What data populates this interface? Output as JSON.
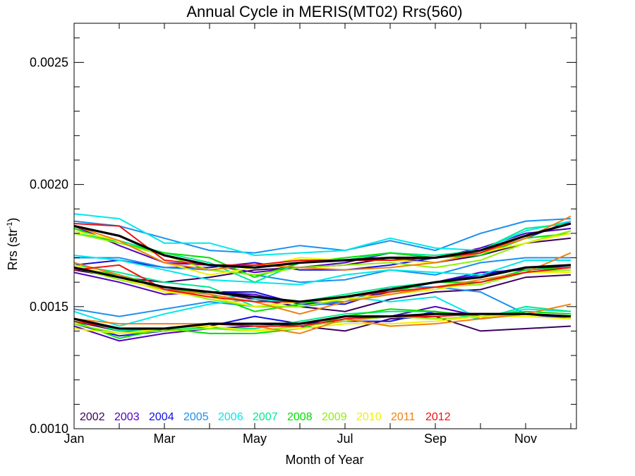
{
  "chart_data": {
    "type": "line",
    "title": "Annual Cycle in MERIS(MT02) Rrs(560)",
    "xlabel": "Month of Year",
    "ylabel_main": "Rrs (str",
    "ylabel_sup": "-1",
    "ylabel_close": ")",
    "xlim": [
      1,
      12
    ],
    "ylim": [
      0.001,
      0.00266
    ],
    "x_ticks": [
      {
        "value": 1,
        "label": "Jan"
      },
      {
        "value": 3,
        "label": "Mar"
      },
      {
        "value": 5,
        "label": "May"
      },
      {
        "value": 7,
        "label": "Jul"
      },
      {
        "value": 9,
        "label": "Sep"
      },
      {
        "value": 11,
        "label": "Nov"
      }
    ],
    "y_ticks": [
      {
        "value": 0.001,
        "label": "0.0010"
      },
      {
        "value": 0.0015,
        "label": "0.0015"
      },
      {
        "value": 0.002,
        "label": "0.0020"
      },
      {
        "value": 0.0025,
        "label": "0.0025"
      }
    ],
    "y_minor_step": 0.0001,
    "grid": false,
    "legend_position": "bottom-left",
    "groups": [
      "upper",
      "middle",
      "lower"
    ],
    "x": [
      1,
      2,
      3,
      4,
      5,
      6,
      7,
      8,
      9,
      10,
      11,
      12
    ],
    "series": [
      {
        "name": "2002",
        "color": "#3c0060",
        "values": {
          "upper": [
            0.00165,
            0.00162,
            0.0016,
            0.00162,
            0.00165,
            0.00166,
            0.00167,
            0.0017,
            0.00168,
            0.00171,
            0.00176,
            0.00178
          ],
          "middle": [
            0.00165,
            0.00162,
            0.00158,
            0.00156,
            0.00153,
            0.0015,
            0.00148,
            0.00153,
            0.00156,
            0.00157,
            0.00162,
            0.00163
          ],
          "lower": [
            0.00144,
            0.0014,
            0.0014,
            0.00143,
            0.00143,
            0.00142,
            0.0014,
            0.00145,
            0.00146,
            0.0014,
            0.00141,
            0.00142
          ]
        }
      },
      {
        "name": "2003",
        "color": "#5000c0",
        "values": {
          "upper": [
            0.00183,
            0.00175,
            0.00168,
            0.00167,
            0.00164,
            0.00166,
            0.00168,
            0.00172,
            0.0017,
            0.00174,
            0.0018,
            0.00182
          ],
          "middle": [
            0.00164,
            0.0016,
            0.00155,
            0.00156,
            0.00155,
            0.00151,
            0.00152,
            0.00156,
            0.0016,
            0.00164,
            0.00165,
            0.00166
          ],
          "lower": [
            0.00142,
            0.00136,
            0.00139,
            0.00141,
            0.00142,
            0.00142,
            0.00144,
            0.00146,
            0.0015,
            0.00146,
            0.00147,
            0.00145
          ]
        }
      },
      {
        "name": "2004",
        "color": "#1010e0",
        "values": {
          "upper": [
            0.00167,
            0.00169,
            0.00166,
            0.00166,
            0.00168,
            0.00165,
            0.00165,
            0.00167,
            0.0017,
            0.00172,
            0.00178,
            0.00185
          ],
          "middle": [
            0.00166,
            0.00163,
            0.00157,
            0.00156,
            0.00156,
            0.00151,
            0.00151,
            0.00157,
            0.0016,
            0.00163,
            0.00166,
            0.00166
          ],
          "lower": [
            0.00143,
            0.00138,
            0.0014,
            0.00142,
            0.00146,
            0.00143,
            0.00144,
            0.00144,
            0.00148,
            0.00145,
            0.00147,
            0.00145
          ]
        }
      },
      {
        "name": "2005",
        "color": "#1890f0",
        "values": {
          "upper": [
            0.00185,
            0.00183,
            0.00178,
            0.00173,
            0.00172,
            0.00175,
            0.00173,
            0.00177,
            0.00173,
            0.0018,
            0.00185,
            0.00186
          ],
          "middle": [
            0.0017,
            0.0017,
            0.00166,
            0.00165,
            0.00163,
            0.0016,
            0.00161,
            0.00165,
            0.00163,
            0.00168,
            0.0017,
            0.0017
          ],
          "lower": [
            0.00149,
            0.00146,
            0.00149,
            0.00152,
            0.0015,
            0.0015,
            0.00152,
            0.00158,
            0.00158,
            0.00156,
            0.00147,
            0.00146
          ]
        }
      },
      {
        "name": "2006",
        "color": "#00e8e8",
        "values": {
          "upper": [
            0.00188,
            0.00186,
            0.00176,
            0.00176,
            0.00171,
            0.00172,
            0.00173,
            0.00178,
            0.00174,
            0.00173,
            0.00181,
            0.00185
          ],
          "middle": [
            0.00171,
            0.00169,
            0.00165,
            0.00161,
            0.0016,
            0.00159,
            0.00163,
            0.00165,
            0.00164,
            0.00163,
            0.00169,
            0.00169
          ],
          "lower": [
            0.00148,
            0.00142,
            0.00147,
            0.00151,
            0.00153,
            0.00152,
            0.00154,
            0.00152,
            0.00154,
            0.00145,
            0.00149,
            0.00148
          ]
        }
      },
      {
        "name": "2007",
        "color": "#00e890",
        "values": {
          "upper": [
            0.0018,
            0.00177,
            0.00172,
            0.00168,
            0.0016,
            0.00168,
            0.00169,
            0.00172,
            0.00171,
            0.00173,
            0.00182,
            0.00184
          ],
          "middle": [
            0.00167,
            0.00164,
            0.0016,
            0.00158,
            0.0015,
            0.00152,
            0.00155,
            0.00158,
            0.0016,
            0.00162,
            0.00166,
            0.00167
          ],
          "lower": [
            0.00145,
            0.0014,
            0.00141,
            0.00141,
            0.00141,
            0.00144,
            0.00147,
            0.00148,
            0.00148,
            0.00145,
            0.0015,
            0.00148
          ]
        }
      },
      {
        "name": "2008",
        "color": "#00e000",
        "values": {
          "upper": [
            0.00182,
            0.00176,
            0.00172,
            0.0017,
            0.00162,
            0.00168,
            0.0017,
            0.00172,
            0.0017,
            0.00171,
            0.00178,
            0.0018
          ],
          "middle": [
            0.00166,
            0.00163,
            0.00158,
            0.00155,
            0.00148,
            0.00151,
            0.00154,
            0.00156,
            0.0016,
            0.0016,
            0.00165,
            0.00166
          ],
          "lower": [
            0.00144,
            0.00137,
            0.00141,
            0.00139,
            0.00139,
            0.00141,
            0.00146,
            0.00149,
            0.00148,
            0.00146,
            0.00148,
            0.00147
          ]
        }
      },
      {
        "name": "2009",
        "color": "#90f000",
        "values": {
          "upper": [
            0.0018,
            0.00176,
            0.00171,
            0.00165,
            0.00163,
            0.00166,
            0.00167,
            0.00168,
            0.00166,
            0.00169,
            0.00176,
            0.00181
          ],
          "middle": [
            0.00166,
            0.00161,
            0.00157,
            0.00153,
            0.0015,
            0.0015,
            0.00153,
            0.00155,
            0.00158,
            0.00159,
            0.00164,
            0.00165
          ],
          "lower": [
            0.00143,
            0.00139,
            0.0014,
            0.00141,
            0.0014,
            0.00142,
            0.00144,
            0.00146,
            0.00145,
            0.00146,
            0.00147,
            0.00146
          ]
        }
      },
      {
        "name": "2010",
        "color": "#f0f000",
        "values": {
          "upper": [
            0.00181,
            0.00177,
            0.00168,
            0.00163,
            0.00166,
            0.0017,
            0.00169,
            0.00169,
            0.00168,
            0.00172,
            0.00176,
            0.0018
          ],
          "middle": [
            0.00167,
            0.00162,
            0.00156,
            0.00154,
            0.0015,
            0.00152,
            0.00153,
            0.00155,
            0.00157,
            0.0016,
            0.00164,
            0.00164
          ],
          "lower": [
            0.00141,
            0.00139,
            0.00141,
            0.00142,
            0.0014,
            0.00141,
            0.00143,
            0.00143,
            0.00144,
            0.00146,
            0.00146,
            0.00145
          ]
        }
      },
      {
        "name": "2011",
        "color": "#f08010",
        "values": {
          "upper": [
            0.00183,
            0.00177,
            0.00168,
            0.00165,
            0.00167,
            0.00166,
            0.00165,
            0.00166,
            0.00168,
            0.00172,
            0.00178,
            0.00187
          ],
          "middle": [
            0.00168,
            0.00163,
            0.00157,
            0.00155,
            0.00152,
            0.00147,
            0.00152,
            0.00155,
            0.00158,
            0.00161,
            0.00164,
            0.00172
          ],
          "lower": [
            0.00145,
            0.00143,
            0.00143,
            0.00143,
            0.00142,
            0.00139,
            0.00145,
            0.00142,
            0.00143,
            0.00145,
            0.00147,
            0.00151
          ]
        }
      },
      {
        "name": "2012",
        "color": "#f01010",
        "values": {
          "upper": [
            0.00184,
            0.00183,
            0.00169,
            0.00167,
            0.00167,
            0.00169,
            0.00169,
            0.00169,
            0.0017,
            0.00172,
            0.00179,
            0.00184
          ],
          "middle": [
            0.00165,
            0.00167,
            0.00157,
            0.00154,
            0.00152,
            0.00152,
            0.00154,
            0.00156,
            0.00158,
            0.0016,
            0.00164,
            0.00166
          ],
          "lower": [
            0.00144,
            0.00141,
            0.00141,
            0.00143,
            0.00142,
            0.00142,
            0.00145,
            0.00146,
            0.00146,
            0.00147,
            0.00147,
            0.00146
          ]
        }
      }
    ],
    "mean_series": {
      "color": "#000000",
      "values": {
        "upper": [
          0.00183,
          0.00179,
          0.00171,
          0.00167,
          0.00166,
          0.00168,
          0.00169,
          0.0017,
          0.0017,
          0.00173,
          0.00179,
          0.00184
        ],
        "middle": [
          0.00166,
          0.00162,
          0.00158,
          0.00156,
          0.00154,
          0.00152,
          0.00154,
          0.00157,
          0.0016,
          0.00162,
          0.00166,
          0.00167
        ],
        "lower": [
          0.00145,
          0.00141,
          0.00141,
          0.00143,
          0.00143,
          0.00143,
          0.00146,
          0.00146,
          0.00147,
          0.00147,
          0.00147,
          0.00146
        ]
      }
    }
  }
}
